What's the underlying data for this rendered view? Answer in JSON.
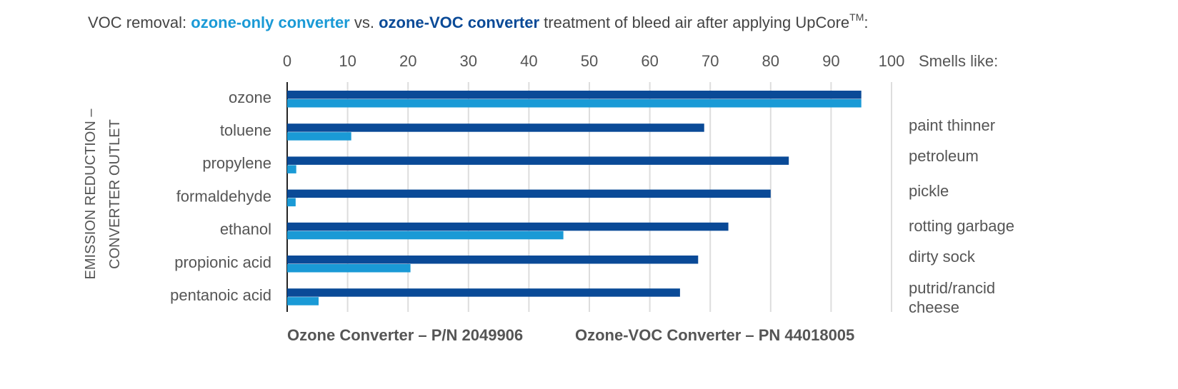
{
  "chart_data": {
    "type": "bar",
    "orientation": "horizontal",
    "title_parts": [
      {
        "text": "VOC removal: ",
        "color": "#444444"
      },
      {
        "text": "ozone-only converter",
        "color": "#1a9ad6",
        "bold": true
      },
      {
        "text": " vs. ",
        "color": "#444444"
      },
      {
        "text": "ozone-VOC converter",
        "color": "#0a4a97",
        "bold": true
      },
      {
        "text": " treatment of bleed air after applying UpCore",
        "color": "#444444"
      },
      {
        "text": "TM",
        "color": "#444444",
        "superscript": true
      },
      {
        "text": ":",
        "color": "#444444"
      }
    ],
    "y_label": [
      "EMISSION REDUCTION –",
      "CONVERTER OUTLET"
    ],
    "smells_title": "Smells like:",
    "smells": [
      "paint thinner",
      "petroleum",
      "pickle",
      "rotting garbage",
      "dirty sock",
      "putrid/rancid cheese"
    ],
    "categories": [
      "ozone",
      "toluene",
      "propylene",
      "formaldehyde",
      "ethanol",
      "propionic acid",
      "pentanoic acid"
    ],
    "series": [
      {
        "name": "Ozone-VOC Converter – PN 44018005",
        "color": "#0a4a97",
        "values": [
          95,
          69,
          83,
          80,
          73,
          68,
          65
        ]
      },
      {
        "name": "Ozone Converter – P/N 2049906",
        "color": "#1a9ad6",
        "values": [
          95,
          10.6,
          1.5,
          1.4,
          45.7,
          20.4,
          5.2
        ]
      }
    ],
    "xlim": [
      0,
      100
    ],
    "xticks": [
      0,
      10,
      20,
      30,
      40,
      50,
      60,
      70,
      80,
      90,
      100
    ],
    "grid": true
  }
}
